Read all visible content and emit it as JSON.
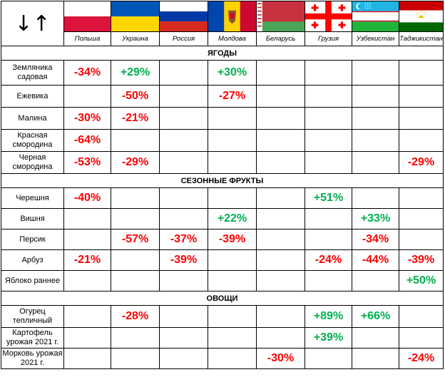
{
  "corner_symbol": "↓↑",
  "countries": [
    {
      "name": "Польша",
      "flag": "poland-flag"
    },
    {
      "name": "Украина",
      "flag": "ukraine-flag"
    },
    {
      "name": "Россия",
      "flag": "russia-flag"
    },
    {
      "name": "Молдова",
      "flag": "moldova-flag"
    },
    {
      "name": "Беларусь",
      "flag": "belarus-flag"
    },
    {
      "name": "Грузия",
      "flag": "georgia-flag"
    },
    {
      "name": "Узбекистан",
      "flag": "uzbekistan-flag"
    },
    {
      "name": "Таджикистан",
      "flag": "tajikistan-flag"
    }
  ],
  "colors": {
    "negative": "#ff0000",
    "positive": "#00b050"
  },
  "sections": [
    {
      "title": "ЯГОДЫ",
      "rows": [
        {
          "label": "Земляника садовая",
          "values": [
            "-34%",
            "+29%",
            "",
            "+30%",
            "",
            "",
            "",
            ""
          ]
        },
        {
          "label": "Ежевика",
          "values": [
            "",
            "-50%",
            "",
            "-27%",
            "",
            "",
            "",
            ""
          ]
        },
        {
          "label": "Малина",
          "values": [
            "-30%",
            "-21%",
            "",
            "",
            "",
            "",
            "",
            ""
          ]
        },
        {
          "label": "Красная смородина",
          "values": [
            "-64%",
            "",
            "",
            "",
            "",
            "",
            "",
            ""
          ]
        },
        {
          "label": "Черная смородина",
          "values": [
            "-53%",
            "-29%",
            "",
            "",
            "",
            "",
            "",
            "-29%"
          ]
        }
      ]
    },
    {
      "title": "СЕЗОННЫЕ ФРУКТЫ",
      "rows": [
        {
          "label": "Черешня",
          "values": [
            "-40%",
            "",
            "",
            "",
            "",
            "+51%",
            "",
            ""
          ]
        },
        {
          "label": "Вишня",
          "values": [
            "",
            "",
            "",
            "+22%",
            "",
            "",
            "+33%",
            ""
          ]
        },
        {
          "label": "Персик",
          "values": [
            "",
            "-57%",
            "-37%",
            "-39%",
            "",
            "",
            "-34%",
            ""
          ]
        },
        {
          "label": "Арбуз",
          "values": [
            "-21%",
            "",
            "-39%",
            "",
            "",
            "-24%",
            "-44%",
            "-39%"
          ]
        },
        {
          "label": "Яблоко раннее",
          "values": [
            "",
            "",
            "",
            "",
            "",
            "",
            "",
            "+50%"
          ]
        }
      ]
    },
    {
      "title": "ОВОЩИ",
      "rows": [
        {
          "label": "Огурец тепличный",
          "values": [
            "",
            "-28%",
            "",
            "",
            "",
            "+89%",
            "+66%",
            ""
          ]
        },
        {
          "label": "Картофель урожая 2021 г.",
          "values": [
            "",
            "",
            "",
            "",
            "",
            "+39%",
            "",
            ""
          ]
        },
        {
          "label": "Морковь урожая 2021 г.",
          "values": [
            "",
            "",
            "",
            "",
            "-30%",
            "",
            "",
            "-24%"
          ]
        }
      ]
    }
  ]
}
